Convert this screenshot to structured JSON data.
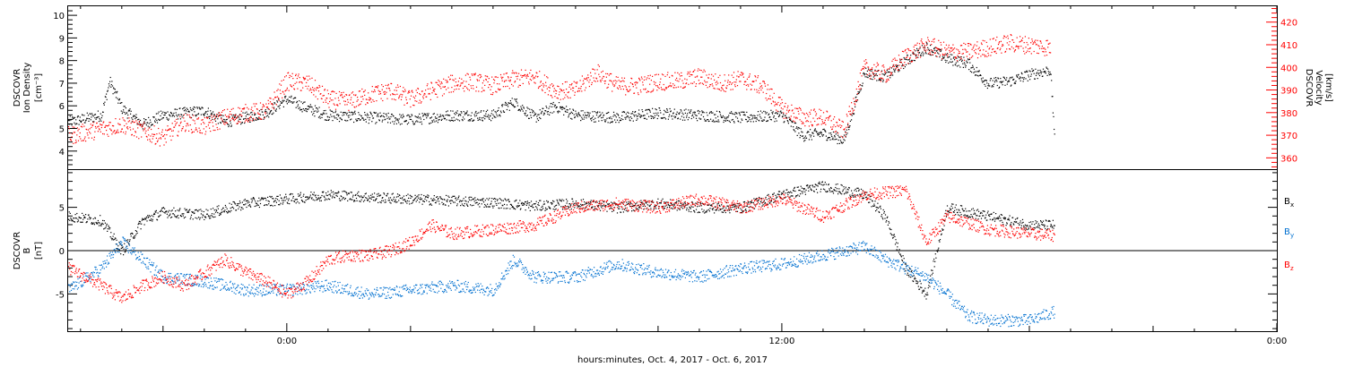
{
  "figure": {
    "xlabel": "hours:minutes, Oct.  4, 2017 - Oct.  6, 2017",
    "x_ticks": [
      "0:00",
      "12:00",
      "0:00"
    ],
    "x_range_hours": [
      -5.3,
      24.0
    ],
    "data_end_hour": 18.6,
    "colors": {
      "black": "#000000",
      "red": "#ff0000",
      "blue": "#0070d0"
    }
  },
  "chart_data": [
    {
      "type": "scatter",
      "panel": "top",
      "ylabel_left": [
        "DSCOVR",
        "Ion Density",
        "[cm⁻³]"
      ],
      "ylabel_right": [
        "DSCOVR",
        "Velocity",
        "[km/s]"
      ],
      "ylim_left": [
        3.2,
        10.4
      ],
      "ylim_right": [
        355,
        427
      ],
      "yticks_left": [
        "4",
        "5",
        "6",
        "7",
        "8",
        "9",
        "10"
      ],
      "yticks_right": [
        "360",
        "370",
        "380",
        "390",
        "400",
        "410",
        "420"
      ],
      "grid": false,
      "series": [
        {
          "axis": "left",
          "color": "#000000",
          "x": [
            -5.3,
            -4.5,
            -4.3,
            -4.0,
            -3.5,
            -3.0,
            -2.0,
            -1.5,
            -0.5,
            -0.2,
            0.0,
            0.5,
            1.0,
            2.0,
            3.0,
            4.0,
            5.0,
            5.5,
            6.0,
            6.5,
            7.0,
            8.0,
            9.0,
            10.0,
            11.0,
            12.0,
            12.5,
            13.0,
            13.5,
            14.0,
            14.5,
            15.0,
            15.5,
            16.0,
            16.5,
            17.0,
            17.5,
            18.0,
            18.5,
            18.6
          ],
          "y": [
            5.3,
            5.6,
            7.1,
            5.9,
            5.2,
            5.6,
            5.8,
            5.3,
            5.7,
            6.1,
            6.3,
            5.9,
            5.6,
            5.5,
            5.4,
            5.6,
            5.6,
            6.2,
            5.5,
            6.0,
            5.6,
            5.5,
            5.7,
            5.6,
            5.5,
            5.6,
            4.7,
            4.8,
            4.5,
            7.5,
            7.3,
            8.0,
            8.6,
            8.1,
            7.9,
            7.0,
            7.1,
            7.4,
            7.6,
            4.8
          ]
        },
        {
          "axis": "right",
          "color": "#ff0000",
          "x": [
            -5.3,
            -5.0,
            -4.5,
            -4.0,
            -3.5,
            -3.0,
            -2.5,
            -2.0,
            -1.5,
            -1.0,
            -0.5,
            0.0,
            0.5,
            1.0,
            1.5,
            2.0,
            2.5,
            3.0,
            3.5,
            4.0,
            4.5,
            5.0,
            5.5,
            6.0,
            6.5,
            7.0,
            7.5,
            8.0,
            8.5,
            9.0,
            9.5,
            10.0,
            10.5,
            11.0,
            11.5,
            12.0,
            12.5,
            13.0,
            13.5,
            14.0,
            14.5,
            15.0,
            15.5,
            16.0,
            16.5,
            17.0,
            17.5,
            18.0,
            18.5
          ],
          "y": [
            370,
            371,
            373,
            375,
            372,
            369,
            376,
            374,
            378,
            380,
            381,
            394,
            393,
            386,
            385,
            388,
            390,
            386,
            390,
            393,
            394,
            392,
            395,
            396,
            390,
            390,
            398,
            392,
            392,
            394,
            394,
            396,
            393,
            395,
            392,
            382,
            378,
            378,
            372,
            400,
            397,
            405,
            410,
            407,
            407,
            409,
            411,
            410,
            409
          ]
        }
      ]
    },
    {
      "type": "scatter",
      "panel": "bottom",
      "ylabel_left": [
        "DSCOVR",
        "B",
        "[nT]"
      ],
      "ylim": [
        -9.3,
        9.3
      ],
      "yticks": [
        "-5",
        "0",
        "5"
      ],
      "grid": false,
      "series": [
        {
          "name": "Bx",
          "color": "#000000",
          "x": [
            -5.3,
            -4.5,
            -4.0,
            -3.5,
            -3.0,
            -2.0,
            -1.0,
            0.0,
            1.0,
            2.0,
            3.0,
            4.0,
            5.0,
            6.0,
            7.0,
            8.0,
            9.0,
            10.0,
            11.0,
            12.0,
            13.0,
            14.0,
            14.5,
            15.0,
            15.5,
            16.0,
            17.0,
            18.0,
            18.6
          ],
          "y": [
            4.0,
            3.5,
            0.0,
            3.5,
            4.5,
            4.2,
            5.5,
            6.0,
            6.5,
            6.2,
            6.0,
            5.8,
            5.6,
            5.2,
            5.5,
            5.0,
            5.5,
            5.0,
            5.0,
            6.5,
            7.5,
            6.5,
            4.0,
            -2.0,
            -5.0,
            5.0,
            4.0,
            3.0,
            3.0
          ]
        },
        {
          "name": "By",
          "color": "#0070d0",
          "x": [
            -5.3,
            -4.5,
            -4.0,
            -3.5,
            -3.0,
            -2.0,
            -1.0,
            0.0,
            1.0,
            2.0,
            3.0,
            4.0,
            5.0,
            5.5,
            6.0,
            7.0,
            8.0,
            9.0,
            10.0,
            11.0,
            12.0,
            13.0,
            14.0,
            14.5,
            15.0,
            15.5,
            16.0,
            16.5,
            17.0,
            18.0,
            18.6
          ],
          "y": [
            -4.5,
            -2.0,
            1.0,
            -1.0,
            -3.0,
            -3.5,
            -4.5,
            -4.5,
            -4.0,
            -5.0,
            -4.5,
            -4.0,
            -4.5,
            -1.0,
            -3.0,
            -3.0,
            -1.5,
            -2.5,
            -3.0,
            -2.0,
            -1.5,
            -0.5,
            0.5,
            -1.0,
            -2.0,
            -3.0,
            -5.0,
            -7.5,
            -8.0,
            -8.0,
            -7.0
          ]
        },
        {
          "name": "Bz",
          "color": "#ff0000",
          "x": [
            -5.3,
            -4.5,
            -4.0,
            -3.5,
            -3.0,
            -2.5,
            -2.0,
            -1.5,
            -1.0,
            -0.5,
            0.0,
            0.5,
            1.0,
            1.5,
            2.0,
            2.5,
            3.0,
            3.5,
            4.0,
            5.0,
            6.0,
            7.0,
            8.0,
            9.0,
            10.0,
            11.0,
            12.0,
            13.0,
            14.0,
            15.0,
            15.5,
            16.0,
            17.0,
            18.0,
            18.6
          ],
          "y": [
            -2.0,
            -4.0,
            -5.5,
            -4.0,
            -3.0,
            -4.0,
            -2.5,
            -1.0,
            -2.5,
            -3.5,
            -5.0,
            -3.5,
            -1.0,
            -0.5,
            -0.5,
            0.0,
            1.0,
            3.0,
            2.0,
            2.5,
            3.0,
            5.0,
            5.5,
            5.0,
            6.0,
            5.0,
            6.0,
            4.0,
            6.5,
            7.0,
            1.0,
            4.0,
            2.5,
            2.0,
            1.8
          ]
        }
      ],
      "legend": [
        "B",
        "B",
        "B"
      ],
      "legend_subs": [
        "x",
        "y",
        "z"
      ],
      "legend_placement": "right"
    }
  ]
}
